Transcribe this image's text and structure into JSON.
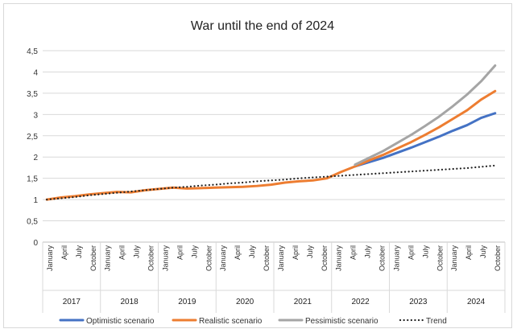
{
  "chart_data": {
    "type": "line",
    "title": "War until the end of 2024",
    "xlabel": "",
    "ylabel": "",
    "ylim": [
      0,
      4.5
    ],
    "yticks": [
      "0",
      "0,5",
      "1",
      "1,5",
      "2",
      "2,5",
      "3",
      "3,5",
      "4",
      "4,5"
    ],
    "years": [
      "2017",
      "2018",
      "2019",
      "2020",
      "2021",
      "2022",
      "2023",
      "2024"
    ],
    "months": [
      "January",
      "April",
      "July",
      "October"
    ],
    "grid": true,
    "legend_position": "bottom",
    "x": [
      "2017-01",
      "2017-04",
      "2017-07",
      "2017-10",
      "2018-01",
      "2018-04",
      "2018-07",
      "2018-10",
      "2019-01",
      "2019-04",
      "2019-07",
      "2019-10",
      "2020-01",
      "2020-04",
      "2020-07",
      "2020-10",
      "2021-01",
      "2021-04",
      "2021-07",
      "2021-10",
      "2022-01",
      "2022-04",
      "2022-07",
      "2022-10",
      "2023-01",
      "2023-04",
      "2023-07",
      "2023-10",
      "2024-01",
      "2024-04",
      "2024-07",
      "2024-10",
      "2024-12"
    ],
    "series": [
      {
        "name": "Optimistic scenario",
        "color": "#4472c4",
        "style": "solid",
        "values": [
          null,
          null,
          null,
          null,
          null,
          null,
          null,
          null,
          null,
          null,
          null,
          null,
          null,
          null,
          null,
          null,
          null,
          null,
          null,
          null,
          null,
          null,
          1.78,
          1.88,
          1.98,
          2.1,
          2.22,
          2.35,
          2.48,
          2.62,
          2.75,
          2.92,
          3.03
        ]
      },
      {
        "name": "Realistic scenario",
        "color": "#ed7d31",
        "style": "solid",
        "values": [
          1.0,
          1.05,
          1.08,
          1.12,
          1.15,
          1.18,
          1.17,
          1.22,
          1.25,
          1.28,
          1.26,
          1.27,
          1.28,
          1.29,
          1.3,
          1.32,
          1.35,
          1.4,
          1.43,
          1.45,
          1.5,
          1.65,
          1.78,
          1.92,
          2.05,
          2.2,
          2.35,
          2.52,
          2.7,
          2.9,
          3.1,
          3.35,
          3.55
        ]
      },
      {
        "name": "Pessimistic scenario",
        "color": "#a5a5a5",
        "style": "solid",
        "values": [
          null,
          null,
          null,
          null,
          null,
          null,
          null,
          null,
          null,
          null,
          null,
          null,
          null,
          null,
          null,
          null,
          null,
          null,
          null,
          null,
          null,
          null,
          1.82,
          1.98,
          2.14,
          2.33,
          2.52,
          2.73,
          2.95,
          3.2,
          3.47,
          3.78,
          4.15
        ]
      },
      {
        "name": "Trend",
        "color": "#222222",
        "style": "dotted",
        "values": [
          1.0,
          1.03,
          1.06,
          1.1,
          1.13,
          1.16,
          1.19,
          1.22,
          1.25,
          1.28,
          1.3,
          1.33,
          1.35,
          1.38,
          1.4,
          1.43,
          1.45,
          1.47,
          1.5,
          1.52,
          1.54,
          1.56,
          1.58,
          1.6,
          1.62,
          1.64,
          1.66,
          1.68,
          1.7,
          1.72,
          1.74,
          1.77,
          1.8
        ]
      }
    ]
  }
}
